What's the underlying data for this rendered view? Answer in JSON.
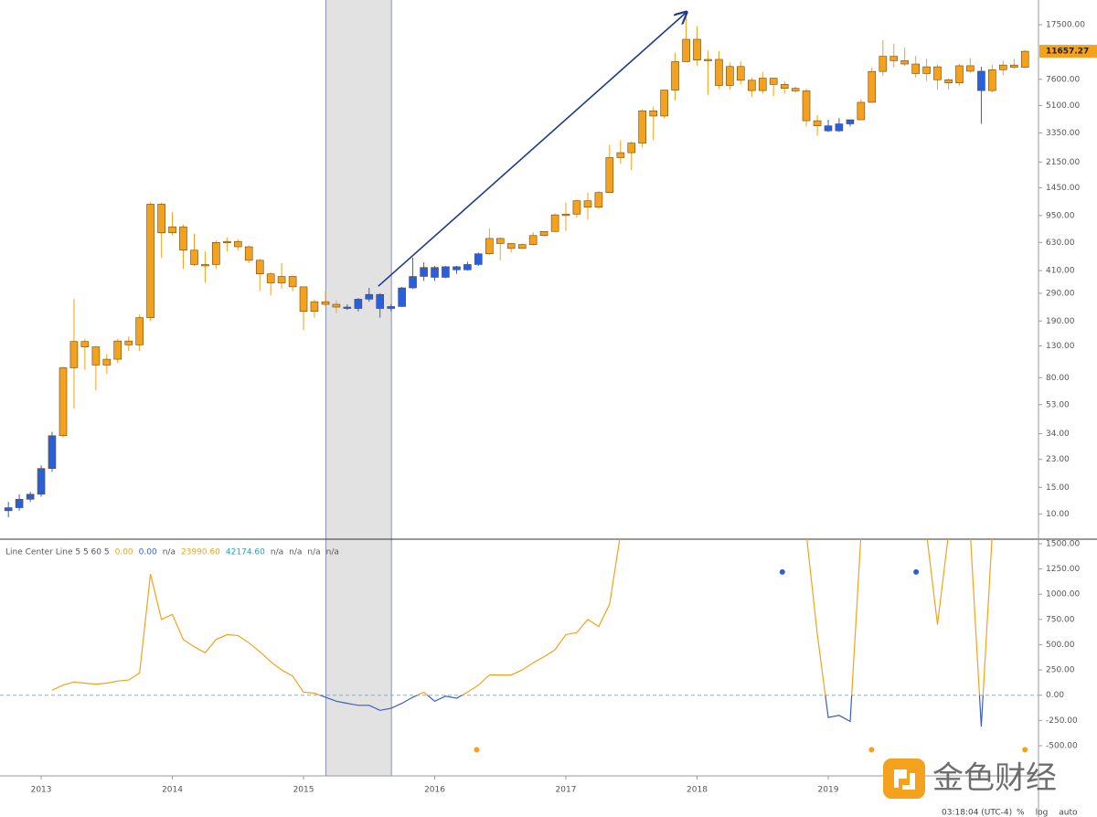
{
  "chart_data": [
    {
      "type": "candlestick",
      "log": true,
      "x": [
        2012.75,
        2012.833,
        2012.917,
        2013.0,
        2013.083,
        2013.167,
        2013.25,
        2013.333,
        2013.417,
        2013.5,
        2013.583,
        2013.667,
        2013.75,
        2013.833,
        2013.917,
        2014.0,
        2014.083,
        2014.167,
        2014.25,
        2014.333,
        2014.417,
        2014.5,
        2014.583,
        2014.667,
        2014.75,
        2014.833,
        2014.917,
        2015.0,
        2015.083,
        2015.167,
        2015.25,
        2015.333,
        2015.417,
        2015.5,
        2015.583,
        2015.667,
        2015.75,
        2015.833,
        2015.917,
        2016.0,
        2016.083,
        2016.167,
        2016.25,
        2016.333,
        2016.417,
        2016.5,
        2016.583,
        2016.667,
        2016.75,
        2016.833,
        2016.917,
        2017.0,
        2017.083,
        2017.167,
        2017.25,
        2017.333,
        2017.417,
        2017.5,
        2017.583,
        2017.667,
        2017.75,
        2017.833,
        2017.917,
        2018.0,
        2018.083,
        2018.167,
        2018.25,
        2018.333,
        2018.417,
        2018.5,
        2018.583,
        2018.667,
        2018.75,
        2018.833,
        2018.917,
        2019.0,
        2019.083,
        2019.167,
        2019.25,
        2019.333,
        2019.417,
        2019.5,
        2019.583,
        2019.667,
        2019.75,
        2019.833,
        2019.917,
        2020.0,
        2020.083,
        2020.167,
        2020.25,
        2020.333,
        2020.417,
        2020.5
      ],
      "open": [
        10.5,
        11,
        12.5,
        13.5,
        20,
        33,
        93,
        139,
        128,
        97,
        106,
        140,
        132,
        200,
        1130,
        730,
        800,
        560,
        450,
        450,
        630,
        640,
        590,
        480,
        390,
        340,
        375,
        320,
        220,
        255,
        245,
        235,
        230,
        265,
        285,
        230,
        237,
        315,
        375,
        430,
        370,
        435,
        415,
        450,
        530,
        670,
        620,
        575,
        610,
        700,
        745,
        960,
        970,
        1190,
        1080,
        1350,
        2300,
        2480,
        2870,
        4700,
        4340,
        6450,
        9950,
        14000,
        10200,
        10300,
        6920,
        9240,
        7490,
        6400,
        7730,
        7030,
        6620,
        6370,
        4040,
        3740,
        3460,
        3850,
        4100,
        5350,
        8570,
        10800,
        10100,
        9600,
        8300,
        9200,
        7550,
        7200,
        9350,
        8600,
        6400,
        8800,
        9450,
        9140
      ],
      "high": [
        12,
        13.5,
        14,
        21,
        35,
        95,
        266,
        145,
        130,
        115,
        145,
        150,
        210,
        1160,
        1160,
        1000,
        830,
        720,
        550,
        650,
        680,
        660,
        600,
        490,
        400,
        460,
        380,
        320,
        265,
        300,
        260,
        245,
        270,
        315,
        290,
        245,
        320,
        500,
        465,
        440,
        440,
        440,
        470,
        540,
        780,
        680,
        625,
        620,
        740,
        750,
        980,
        1160,
        1210,
        1350,
        1380,
        2800,
        3000,
        2950,
        4800,
        5000,
        6500,
        11400,
        19700,
        17100,
        11800,
        11700,
        9800,
        10000,
        7800,
        8500,
        7800,
        7400,
        6800,
        6600,
        4400,
        4100,
        4200,
        4100,
        5600,
        9100,
        13800,
        13100,
        12300,
        10900,
        10400,
        9500,
        7700,
        9600,
        10500,
        9200,
        9500,
        10100,
        10400,
        11900
      ],
      "low": [
        9.5,
        10.5,
        12,
        13,
        19,
        32,
        50,
        90,
        66,
        85,
        100,
        120,
        120,
        190,
        500,
        700,
        420,
        440,
        340,
        420,
        550,
        560,
        460,
        300,
        280,
        310,
        300,
        165,
        200,
        240,
        215,
        225,
        220,
        255,
        200,
        220,
        235,
        310,
        350,
        350,
        365,
        390,
        410,
        440,
        520,
        480,
        540,
        570,
        600,
        690,
        740,
        750,
        920,
        890,
        1050,
        1350,
        2100,
        1900,
        2700,
        3000,
        4200,
        5500,
        9900,
        9400,
        6000,
        6600,
        6500,
        7000,
        5800,
        6100,
        5900,
        6100,
        6200,
        3700,
        3200,
        3400,
        3400,
        3700,
        4100,
        5300,
        8000,
        9100,
        9300,
        7800,
        7400,
        6500,
        6500,
        6900,
        8400,
        3850,
        6200,
        8100,
        8900,
        9000
      ],
      "close": [
        11,
        12.5,
        13.5,
        20,
        33,
        93,
        139,
        128,
        97,
        106,
        140,
        132,
        200,
        1130,
        730,
        800,
        560,
        450,
        450,
        630,
        640,
        590,
        480,
        390,
        340,
        375,
        320,
        220,
        255,
        245,
        235,
        230,
        265,
        285,
        230,
        237,
        315,
        375,
        430,
        370,
        435,
        415,
        450,
        530,
        670,
        620,
        575,
        610,
        700,
        745,
        960,
        970,
        1190,
        1080,
        1350,
        2300,
        2480,
        2870,
        4700,
        4340,
        6450,
        9950,
        14000,
        10200,
        10300,
        6920,
        9240,
        7490,
        6400,
        7730,
        7030,
        6620,
        6370,
        4040,
        3740,
        3460,
        3850,
        4100,
        5350,
        8570,
        10800,
        10100,
        9600,
        8300,
        9200,
        7550,
        7200,
        9350,
        8600,
        6400,
        8800,
        9450,
        9140,
        11657.27
      ],
      "colors": [
        "#2b5fd9",
        "#2b5fd9",
        "#2b5fd9",
        "#2b5fd9",
        "#2b5fd9",
        "#f4a11d",
        "#f4a11d",
        "#f4a11d",
        "#f4a11d",
        "#f4a11d",
        "#f4a11d",
        "#f4a11d",
        "#f4a11d",
        "#f4a11d",
        "#f4a11d",
        "#f4a11d",
        "#f4a11d",
        "#f4a11d",
        "#f4a11d",
        "#f4a11d",
        "#f4a11d",
        "#f4a11d",
        "#f4a11d",
        "#f4a11d",
        "#f4a11d",
        "#f4a11d",
        "#f4a11d",
        "#f4a11d",
        "#f4a11d",
        "#f4a11d",
        "#f4a11d",
        "#2b5fd9",
        "#2b5fd9",
        "#2b5fd9",
        "#2b5fd9",
        "#2b5fd9",
        "#2b5fd9",
        "#2b5fd9",
        "#2b5fd9",
        "#2b5fd9",
        "#2b5fd9",
        "#2b5fd9",
        "#2b5fd9",
        "#2b5fd9",
        "#f4a11d",
        "#f4a11d",
        "#f4a11d",
        "#f4a11d",
        "#f4a11d",
        "#f4a11d",
        "#f4a11d",
        "#f4a11d",
        "#f4a11d",
        "#f4a11d",
        "#f4a11d",
        "#f4a11d",
        "#f4a11d",
        "#f4a11d",
        "#f4a11d",
        "#f4a11d",
        "#f4a11d",
        "#f4a11d",
        "#f4a11d",
        "#f4a11d",
        "#f4a11d",
        "#f4a11d",
        "#f4a11d",
        "#f4a11d",
        "#f4a11d",
        "#f4a11d",
        "#f4a11d",
        "#f4a11d",
        "#f4a11d",
        "#f4a11d",
        "#f4a11d",
        "#2b5fd9",
        "#2b5fd9",
        "#2b5fd9",
        "#f4a11d",
        "#f4a11d",
        "#f4a11d",
        "#f4a11d",
        "#f4a11d",
        "#f4a11d",
        "#f4a11d",
        "#f4a11d",
        "#f4a11d",
        "#f4a11d",
        "#f4a11d",
        "#2b5fd9",
        "#f4a11d",
        "#f4a11d",
        "#f4a11d",
        "#f4a11d"
      ],
      "xlim": [
        2012.686,
        2020.596
      ],
      "ylim": [
        6.8,
        25500
      ],
      "yticks": [
        {
          "value": 10,
          "label": "10.00"
        },
        {
          "value": 15,
          "label": "15.00"
        },
        {
          "value": 23,
          "label": "23.00"
        },
        {
          "value": 34,
          "label": "34.00"
        },
        {
          "value": 53,
          "label": "53.00"
        },
        {
          "value": 80,
          "label": "80.00"
        },
        {
          "value": 130,
          "label": "130.00"
        },
        {
          "value": 190,
          "label": "190.00"
        },
        {
          "value": 290,
          "label": "290.00"
        },
        {
          "value": 410,
          "label": "410.00"
        },
        {
          "value": 630,
          "label": "630.00"
        },
        {
          "value": 950,
          "label": "950.00"
        },
        {
          "value": 1450,
          "label": "1450.00"
        },
        {
          "value": 2150,
          "label": "2150.00"
        },
        {
          "value": 3350,
          "label": "3350.00"
        },
        {
          "value": 5100,
          "label": "5100.00"
        },
        {
          "value": 7600,
          "label": "7600.00"
        },
        {
          "value": 17500,
          "label": "17500.00"
        }
      ],
      "highlight_x": [
        2015.17,
        2015.67
      ],
      "highlight_color": "#e2e2e2",
      "arrow": {
        "x": [
          2015.57,
          2017.92
        ],
        "y": [
          323,
          21200
        ],
        "color": "#1d3a8f"
      },
      "price_label_color": "#f4a11d"
    },
    {
      "type": "line",
      "legend_items": [
        {
          "text": "Line Center Line 5 5 60 5",
          "color": "#555555"
        },
        {
          "text": "0.00",
          "color": "#f4a11d"
        },
        {
          "text": "0.00",
          "color": "#2b5fd9"
        },
        {
          "text": "n/a",
          "color": "#555555"
        },
        {
          "text": "23990.60",
          "color": "#f4a11d"
        },
        {
          "text": "42174.60",
          "color": "#2a9fb0"
        },
        {
          "text": "n/a",
          "color": "#555555"
        },
        {
          "text": "n/a",
          "color": "#555555"
        },
        {
          "text": "n/a",
          "color": "#555555"
        },
        {
          "text": "n/a",
          "color": "#555555"
        }
      ],
      "x": [
        2013.083,
        2013.167,
        2013.25,
        2013.333,
        2013.417,
        2013.5,
        2013.583,
        2013.667,
        2013.75,
        2013.833,
        2013.917,
        2014.0,
        2014.083,
        2014.167,
        2014.25,
        2014.333,
        2014.417,
        2014.5,
        2014.583,
        2014.667,
        2014.75,
        2014.833,
        2014.917,
        2015.0,
        2015.083,
        2015.167,
        2015.25,
        2015.333,
        2015.417,
        2015.5,
        2015.583,
        2015.667,
        2015.75,
        2015.833,
        2015.917,
        2016.0,
        2016.083,
        2016.167,
        2016.25,
        2016.333,
        2016.417,
        2016.5,
        2016.583,
        2016.667,
        2016.75,
        2016.833,
        2016.917,
        2017.0,
        2017.083,
        2017.167,
        2017.25,
        2017.333,
        2017.417,
        2017.5,
        2018.833,
        2018.917,
        2019.0,
        2019.083,
        2019.167,
        2019.25,
        2019.333,
        2019.75,
        2019.833,
        2019.917,
        2020.0,
        2020.083,
        2020.167,
        2020.25
      ],
      "values": [
        50,
        100,
        130,
        120,
        110,
        120,
        140,
        150,
        220,
        1200,
        750,
        800,
        550,
        480,
        420,
        550,
        600,
        590,
        520,
        430,
        330,
        250,
        190,
        30,
        20,
        -20,
        -60,
        -80,
        -100,
        -100,
        -150,
        -130,
        -80,
        -20,
        30,
        -60,
        -10,
        -30,
        30,
        100,
        200,
        200,
        200,
        250,
        320,
        380,
        450,
        600,
        620,
        750,
        680,
        900,
        1600,
        null,
        1600,
        600,
        -220,
        -200,
        -260,
        1600,
        null,
        1600,
        700,
        1600,
        null,
        1600,
        -310,
        1600
      ],
      "color": "#f4a11d",
      "negative_color": "#3b5fc0",
      "zero_line": true,
      "markers": {
        "x": [
          2018.65,
          2019.67,
          2016.32,
          2019.33,
          2020.5
        ],
        "y": [
          1220,
          1220,
          -540,
          -540,
          -540
        ],
        "colors": [
          "#2b5fd9",
          "#2b5fd9",
          "#f4a11d",
          "#f4a11d",
          "#f4a11d"
        ]
      },
      "xlim": [
        2012.686,
        2020.596
      ],
      "ylim": [
        -790,
        1545
      ],
      "yticks": [
        {
          "value": -500,
          "label": "-500.00"
        },
        {
          "value": -250,
          "label": "-250.00"
        },
        {
          "value": 0,
          "label": "0.00"
        },
        {
          "value": 250,
          "label": "250.00"
        },
        {
          "value": 500,
          "label": "500.00"
        },
        {
          "value": 750,
          "label": "750.00"
        },
        {
          "value": 1000,
          "label": "1000.00"
        },
        {
          "value": 1250,
          "label": "1250.00"
        },
        {
          "value": 1500,
          "label": "1500.00"
        }
      ],
      "xticks": [
        2013,
        2014,
        2015,
        2016,
        2017,
        2018,
        2019
      ]
    }
  ],
  "watermark": "金色财经",
  "status": {
    "time": "03:18:04 (UTC-4)",
    "options": [
      "%",
      "log",
      "auto"
    ]
  }
}
